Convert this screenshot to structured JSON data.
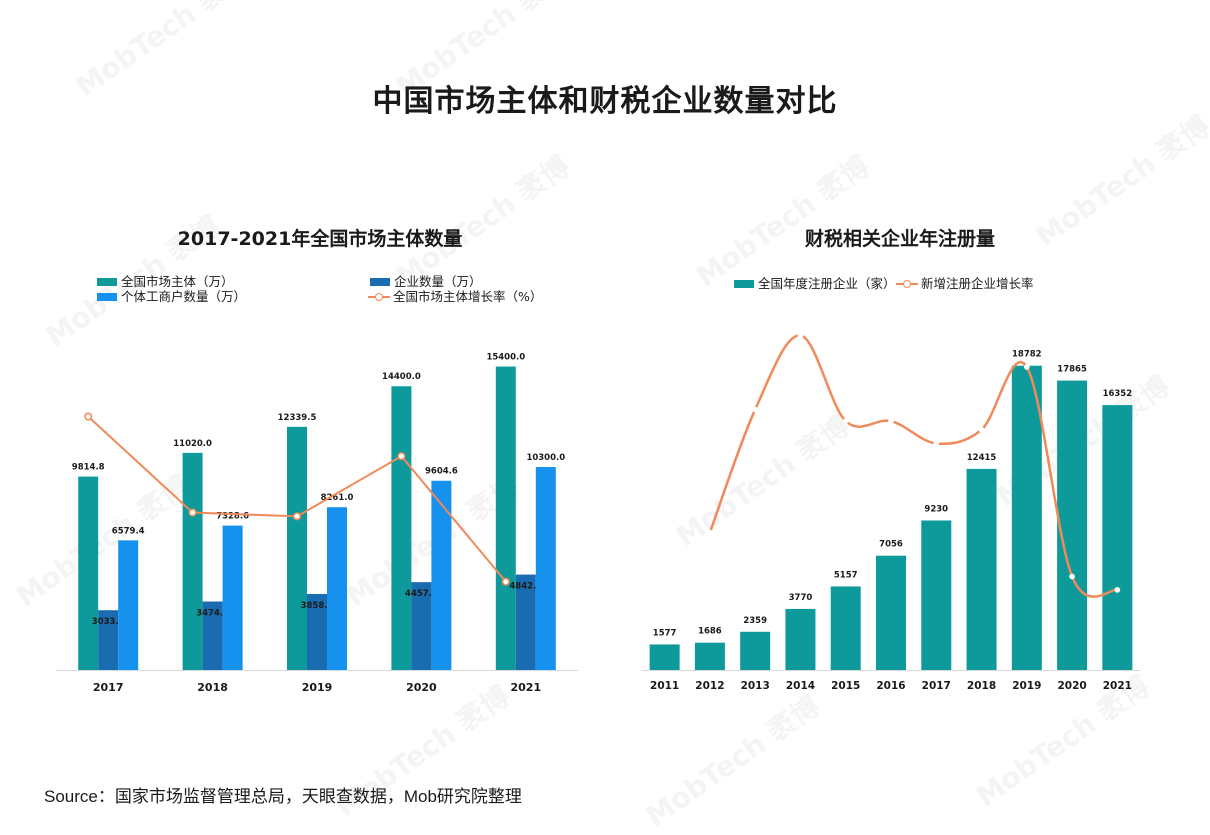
{
  "title": "中国市场主体和财税企业数量对比",
  "source": "Source：国家市场监督管理总局，天眼查数据，Mob研究院整理",
  "watermark": "MobTech 袤博",
  "colors": {
    "teal": "#0E9A9A",
    "dark_blue": "#1A6CB0",
    "light_blue": "#1691EE",
    "orange": "#F08A5A"
  },
  "chart_data": [
    {
      "type": "bar",
      "title": "2017-2021年全国市场主体数量",
      "categories": [
        "2017",
        "2018",
        "2019",
        "2020",
        "2021"
      ],
      "series": [
        {
          "name": "全国市场主体（万）",
          "type": "bar",
          "color": "#0E9A9A",
          "values": [
            9814.8,
            11020.0,
            12339.5,
            14400.0,
            15400.0
          ],
          "labels": [
            "9814.8",
            "11020.0",
            "12339.5",
            "14400.0",
            "15400.0"
          ]
        },
        {
          "name": "企业数量（万）",
          "type": "bar",
          "color": "#1A6CB0",
          "values": [
            3033.7,
            3474.2,
            3858.3,
            4457.2,
            4842.3
          ],
          "labels": [
            "3033.7",
            "3474.2",
            "3858.3",
            "4457.2",
            "4842.3"
          ]
        },
        {
          "name": "个体工商户数量（万）",
          "type": "bar",
          "color": "#1691EE",
          "values": [
            6579.4,
            7328.6,
            8261.0,
            9604.6,
            10300.0
          ],
          "labels": [
            "6579.4",
            "7328.6",
            "8261.0",
            "9604.6",
            "10300.0"
          ]
        },
        {
          "name": "全国市场主体增长率（%）",
          "type": "line",
          "color": "#F08A5A",
          "values": [
            19.8,
            12.3,
            12.0,
            16.7,
            6.9
          ]
        }
      ],
      "legend": "top",
      "ylim": [
        0,
        17000
      ],
      "y2lim": [
        0,
        28
      ],
      "grid": false
    },
    {
      "type": "bar",
      "title": "财税相关企业年注册量",
      "categories": [
        "2011",
        "2012",
        "2013",
        "2014",
        "2015",
        "2016",
        "2017",
        "2018",
        "2019",
        "2020",
        "2021"
      ],
      "series": [
        {
          "name": "全国年度注册企业（家）",
          "type": "bar",
          "color": "#0E9A9A",
          "values": [
            1577,
            1686,
            2359,
            3770,
            5157,
            7056,
            9230,
            12415,
            18782,
            17865,
            16352
          ],
          "labels": [
            "1577",
            "1686",
            "2359",
            "3770",
            "5157",
            "7056",
            "9230",
            "12415",
            "18782",
            "17865",
            "16352"
          ]
        },
        {
          "name": "新增注册企业增长率",
          "type": "line",
          "color": "#F08A5A",
          "smooth": true,
          "values": [
            null,
            6.9,
            39.9,
            59.8,
            36.8,
            36.8,
            30.8,
            34.5,
            51.3,
            -4.9,
            -8.5
          ]
        }
      ],
      "legend": "top",
      "ylim": [
        0,
        20000
      ],
      "y2lim": [
        -30,
        70
      ],
      "grid": false
    }
  ]
}
